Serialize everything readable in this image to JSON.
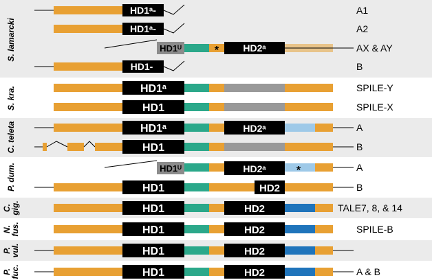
{
  "colors": {
    "orange": "#e8a033",
    "tan": "#e8c48a",
    "teal": "#2ba88a",
    "gray_gene": "#999999",
    "gray_hd": "#8c8c8c",
    "light_blue": "#9ec9e8",
    "blue": "#1f74bb",
    "black": "#000000",
    "band_gray": "#ebebeb",
    "line": "#000000"
  },
  "groups": [
    {
      "label": "S. lamarcki",
      "shaded": true
    },
    {
      "label": "S. kra.",
      "shaded": false
    },
    {
      "label": "C. teleta",
      "shaded": true
    },
    {
      "label": "P. dum.",
      "shaded": false
    },
    {
      "label": "C. gig.",
      "shaded": true
    },
    {
      "label": "N. fus.",
      "shaded": false
    },
    {
      "label": "P. vul.",
      "shaded": true
    },
    {
      "label": "P. fuc.",
      "shaded": false
    }
  ],
  "rows": [
    {
      "id": "s-lamarcki-a1",
      "label": "A1",
      "hd1": "HD1ᵃ-",
      "hd2": "",
      "star": ""
    },
    {
      "id": "s-lamarcki-a2",
      "label": "A2",
      "hd1": "HD1ᵃ-",
      "hd2": "",
      "star": ""
    },
    {
      "id": "s-lamarcki-ax-ay",
      "label": "AX & AY",
      "hd1": "HD1ᵁ",
      "hd2": "HD2ᵃ",
      "star": "*"
    },
    {
      "id": "s-lamarcki-b",
      "label": "B",
      "hd1": "HD1-",
      "hd2": "",
      "star": ""
    },
    {
      "id": "s-kra-spile-y",
      "label": "SPILE-Y",
      "hd1": "HD1ᵃ",
      "hd2": "",
      "star": ""
    },
    {
      "id": "s-kra-spile-x",
      "label": "SPILE-X",
      "hd1": "HD1",
      "hd2": "",
      "star": ""
    },
    {
      "id": "c-teleta-a",
      "label": "A",
      "hd1": "HD1ᵃ",
      "hd2": "HD2ᵃ",
      "star": ""
    },
    {
      "id": "c-teleta-b",
      "label": "B",
      "hd1": "HD1",
      "hd2": "",
      "star": ""
    },
    {
      "id": "p-dum-a",
      "label": "A",
      "hd1": "HD1ᵁ",
      "hd2": "HD2ᵃ",
      "star": "*"
    },
    {
      "id": "p-dum-b",
      "label": "B",
      "hd1": "HD1",
      "hd2": "HD2",
      "star": ""
    },
    {
      "id": "c-gig",
      "label": "TALE7, 8, & 14",
      "hd1": "HD1",
      "hd2": "HD2",
      "star": ""
    },
    {
      "id": "n-fus",
      "label": "SPILE-B",
      "hd1": "HD1",
      "hd2": "HD2",
      "star": ""
    },
    {
      "id": "p-vul",
      "label": "",
      "hd1": "HD1",
      "hd2": "HD2",
      "star": ""
    },
    {
      "id": "p-fuc",
      "label": "A & B",
      "hd1": "HD1",
      "hd2": "HD2",
      "star": ""
    }
  ]
}
